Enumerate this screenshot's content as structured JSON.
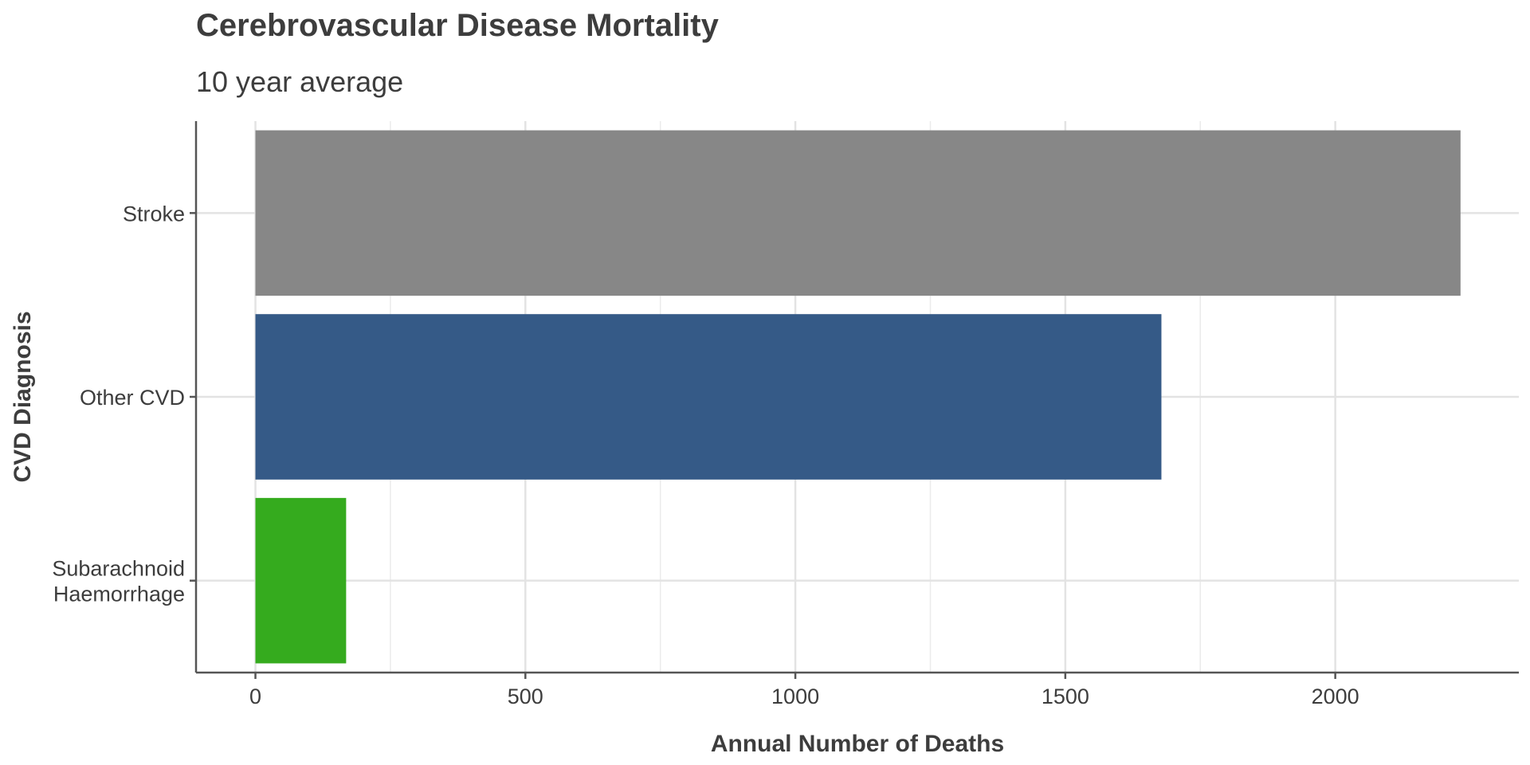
{
  "chart_data": {
    "type": "bar",
    "orientation": "horizontal",
    "title": "Cerebrovascular Disease Mortality",
    "subtitle": "10 year average",
    "xlabel": "Annual Number of Deaths",
    "ylabel": "CVD Diagnosis",
    "categories": [
      "Stroke",
      "Other CVD",
      "Subarachnoid Haemorrhage"
    ],
    "category_lines": [
      [
        "Stroke"
      ],
      [
        "Other CVD"
      ],
      [
        "Subarachnoid",
        "Haemorrhage"
      ]
    ],
    "values": [
      2232,
      1678,
      168
    ],
    "colors": [
      "#878787",
      "#355a87",
      "#35ab1e"
    ],
    "xlim": [
      -110,
      2340
    ],
    "xticks": [
      0,
      500,
      1000,
      1500,
      2000
    ],
    "xtick_labels": [
      "0",
      "500",
      "1000",
      "1500",
      "2000"
    ],
    "grid": true,
    "legend": "none"
  }
}
